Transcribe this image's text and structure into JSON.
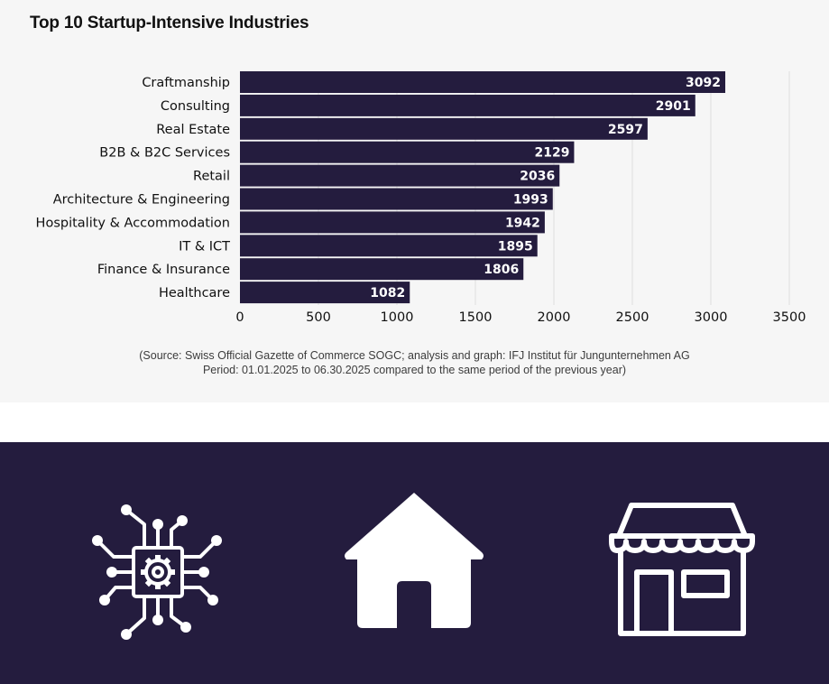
{
  "chart_data": {
    "type": "bar",
    "orientation": "horizontal",
    "title": "Top 10 Startup-Intensive Industries",
    "categories": [
      "Craftmanship",
      "Consulting",
      "Real Estate",
      "B2B & B2C Services",
      "Retail",
      "Architecture & Engineering",
      "Hospitality & Accommodation",
      "IT & ICT",
      "Finance & Insurance",
      "Healthcare"
    ],
    "values": [
      3092,
      2901,
      2597,
      2129,
      2036,
      1993,
      1942,
      1895,
      1806,
      1082
    ],
    "xlim": [
      0,
      3500
    ],
    "xticks": [
      0,
      500,
      1000,
      1500,
      2000,
      2500,
      3000,
      3500
    ],
    "xlabel": "",
    "ylabel": "",
    "grid": "vertical",
    "legend": "none",
    "data_labels": "inside-end",
    "bar_color": "#241c3e",
    "label_color": "#ffffff"
  },
  "source_note": {
    "line1": "(Source: Swiss Official Gazette of Commerce SOGC; analysis and graph: IFJ Institut für Jungunternehmen AG",
    "line2": "Period: 01.01.2025 to 06.30.2025 compared to the same period of the previous year)"
  },
  "icons": {
    "band_color": "#241c3e",
    "icon_color": "#ffffff",
    "items": [
      "circuit-gear-icon",
      "house-icon",
      "storefront-icon"
    ]
  }
}
